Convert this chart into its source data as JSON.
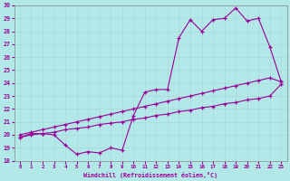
{
  "xlabel": "Windchill (Refroidissement éolien,°C)",
  "bg_color": "#b3e8e8",
  "line_color": "#990099",
  "grid_color": "#d0e8e8",
  "x_min": 0,
  "x_max": 23,
  "y_min": 18,
  "y_max": 30,
  "x_ticks": [
    0,
    1,
    2,
    3,
    4,
    5,
    6,
    7,
    8,
    9,
    10,
    11,
    12,
    13,
    14,
    15,
    16,
    17,
    18,
    19,
    20,
    21,
    22,
    23
  ],
  "y_ticks": [
    18,
    19,
    20,
    21,
    22,
    23,
    24,
    25,
    26,
    27,
    28,
    29,
    30
  ],
  "main_x": [
    0,
    1,
    2,
    3,
    4,
    5,
    6,
    7,
    8,
    9,
    10,
    11,
    12,
    13,
    14,
    15,
    16,
    17,
    18,
    19,
    20,
    21,
    22,
    23
  ],
  "main_y": [
    19.8,
    20.1,
    20.1,
    20.0,
    19.2,
    18.5,
    18.7,
    18.6,
    19.0,
    18.8,
    21.5,
    23.3,
    23.5,
    23.5,
    27.5,
    28.9,
    28.0,
    28.9,
    29.0,
    29.8,
    28.8,
    29.0,
    26.8,
    24.1
  ],
  "upper_x": [
    0,
    1,
    2,
    3,
    4,
    5,
    6,
    7,
    8,
    9,
    10,
    11,
    12,
    13,
    14,
    15,
    16,
    17,
    18,
    19,
    20,
    21,
    22,
    23
  ],
  "upper_y": [
    20.0,
    20.2,
    20.4,
    20.6,
    20.8,
    21.0,
    21.2,
    21.4,
    21.6,
    21.8,
    22.0,
    22.2,
    22.4,
    22.6,
    22.8,
    23.0,
    23.2,
    23.4,
    23.6,
    23.8,
    24.0,
    24.2,
    24.4,
    24.1
  ],
  "lower_x": [
    0,
    1,
    2,
    3,
    4,
    5,
    6,
    7,
    8,
    9,
    10,
    11,
    12,
    13,
    14,
    15,
    16,
    17,
    18,
    19,
    20,
    21,
    22,
    23
  ],
  "lower_y": [
    19.8,
    20.0,
    20.1,
    20.2,
    20.4,
    20.5,
    20.6,
    20.8,
    20.9,
    21.0,
    21.2,
    21.3,
    21.5,
    21.6,
    21.8,
    21.9,
    22.1,
    22.2,
    22.4,
    22.5,
    22.7,
    22.8,
    23.0,
    23.9
  ]
}
